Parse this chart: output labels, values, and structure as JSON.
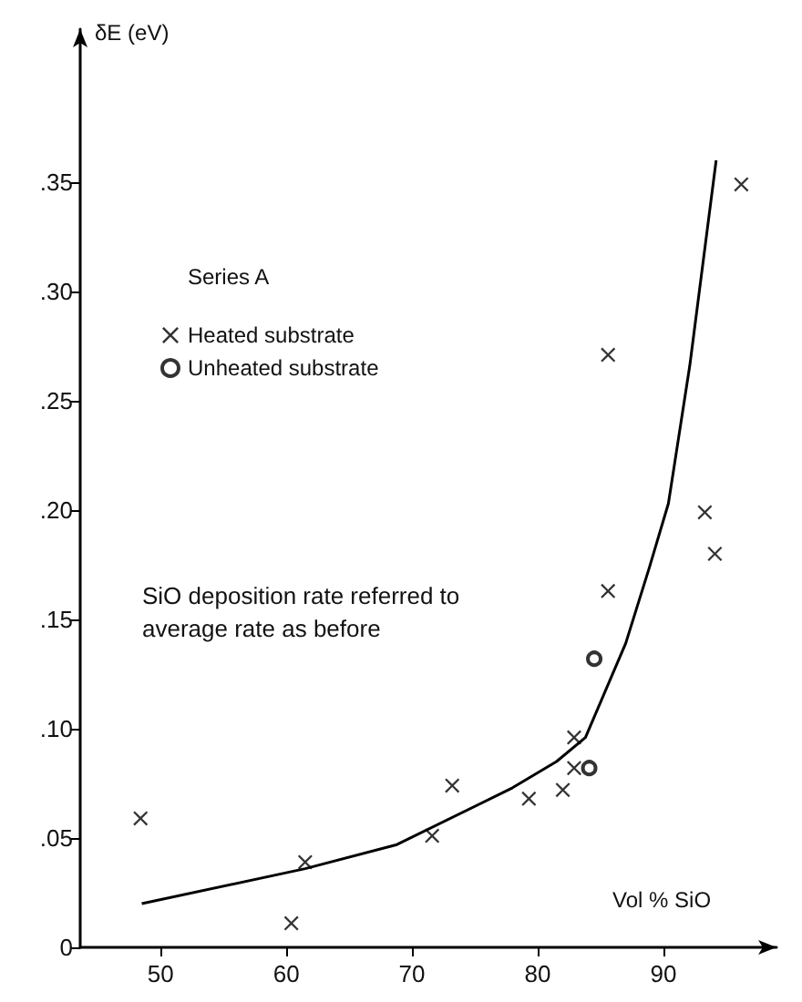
{
  "chart_data": {
    "type": "scatter",
    "ylabel": "δE (eV)",
    "xlabel": "Vol % SiO",
    "legend_title": "Series A",
    "legend": "top left",
    "grid": false,
    "annotations": [
      "SiO deposition rate referred to\naverage rate as before"
    ],
    "xlim": [
      43.6,
      99
    ],
    "xticks": [
      50,
      60,
      70,
      80,
      90
    ],
    "ylim": [
      0,
      0.42
    ],
    "yticks": [
      {
        "value": 0,
        "label": "0"
      },
      {
        "value": 0.05,
        "label": ".05"
      },
      {
        "value": 0.1,
        "label": ".10"
      },
      {
        "value": 0.15,
        "label": ".15"
      },
      {
        "value": 0.2,
        "label": ".20"
      },
      {
        "value": 0.25,
        "label": ".25"
      },
      {
        "value": 0.3,
        "label": ".30"
      },
      {
        "value": 0.35,
        "label": ".35"
      }
    ],
    "series": [
      {
        "name": "Heated substrate",
        "color": "#000000",
        "marker": "cross",
        "x": [
          48.4,
          61.5,
          60.4,
          73.2,
          71.6,
          79.3,
          82.0,
          82.9,
          82.9,
          85.6,
          94.1,
          93.3,
          85.6,
          96.2
        ],
        "values": [
          0.059,
          0.039,
          0.011,
          0.074,
          0.051,
          0.068,
          0.072,
          0.096,
          0.082,
          0.163,
          0.18,
          0.199,
          0.271,
          0.349
        ]
      },
      {
        "name": "Unheated substrate",
        "color": "#000000",
        "marker": "circle",
        "x": [
          84.1,
          84.5
        ],
        "values": [
          0.082,
          0.132
        ]
      },
      {
        "type": "line",
        "color": "#000000",
        "marker": "none",
        "line_style": "solid",
        "x": [
          48.5,
          61.5,
          68.8,
          78.0,
          81.5,
          83.8,
          87.0,
          88.9,
          90.4,
          92.1,
          94.2
        ],
        "values": [
          0.02,
          0.036,
          0.047,
          0.073,
          0.085,
          0.096,
          0.139,
          0.174,
          0.203,
          0.266,
          0.36
        ]
      }
    ]
  }
}
